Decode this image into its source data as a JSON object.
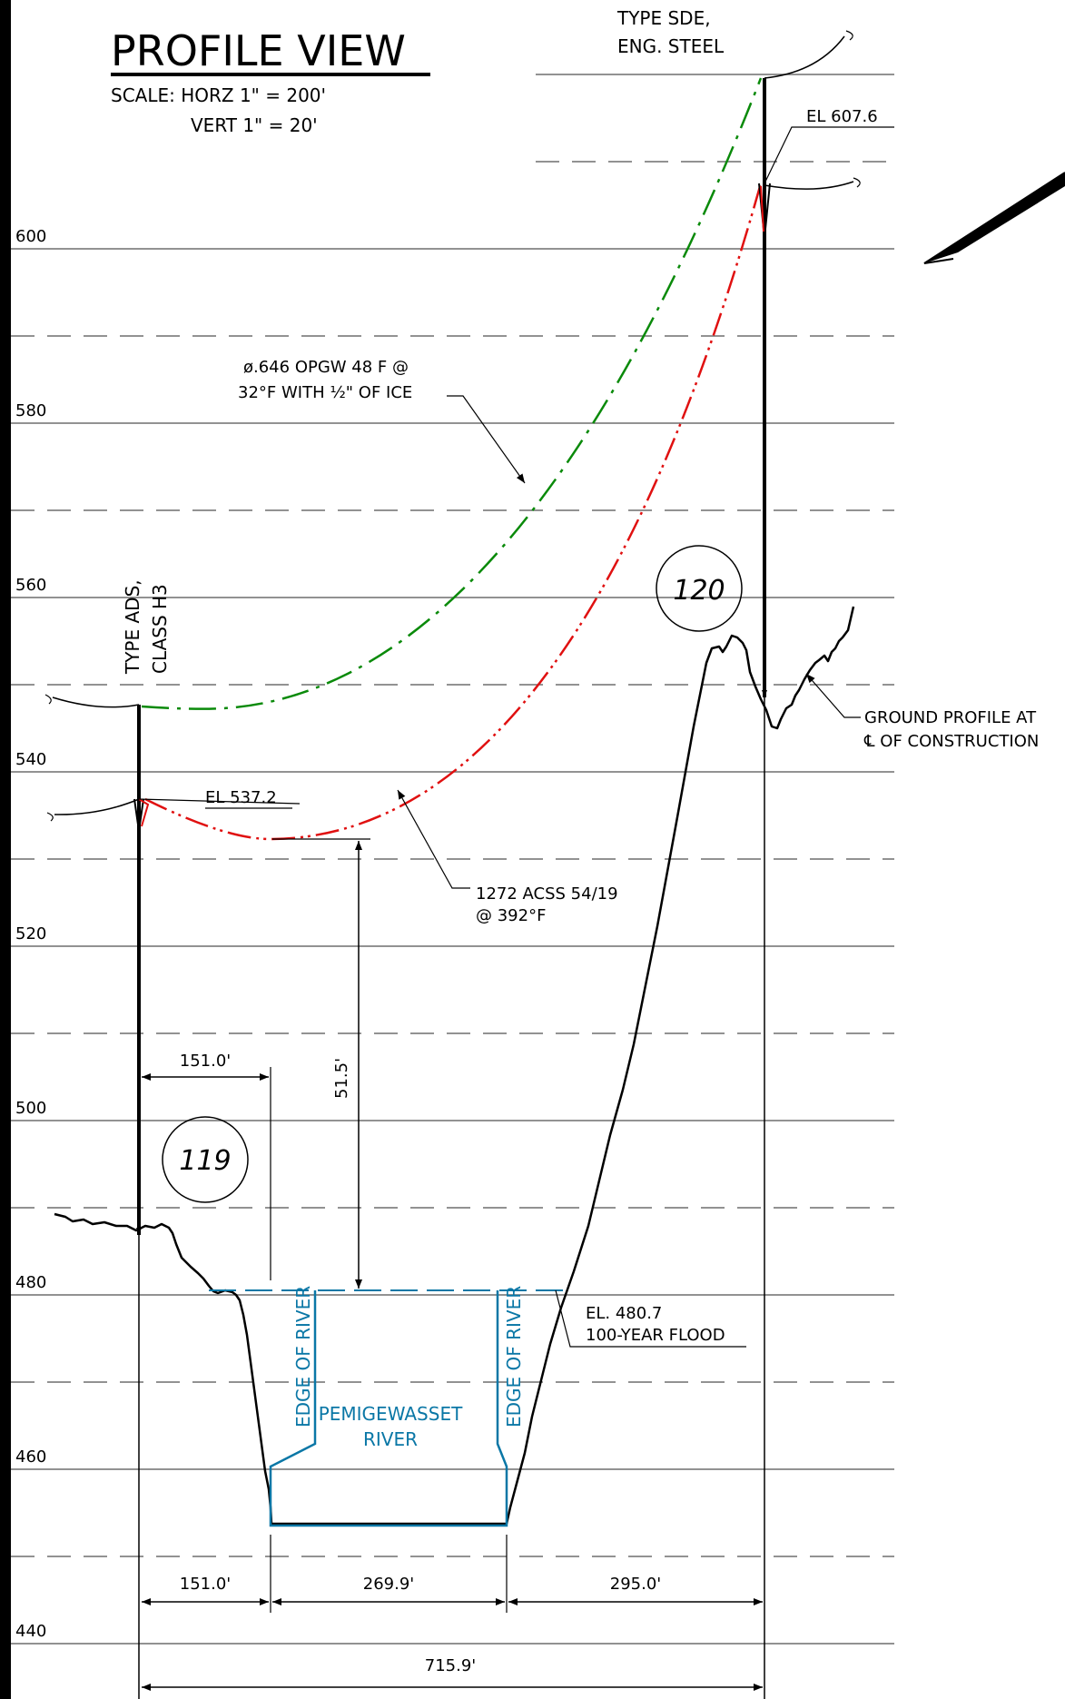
{
  "title": "PROFILE VIEW",
  "scale": {
    "horizontal": "SCALE: HORZ 1\" = 200'",
    "vertical": "VERT 1\" = 20'"
  },
  "elevation_labels": [
    "600",
    "580",
    "560",
    "540",
    "520",
    "500",
    "480",
    "460",
    "440"
  ],
  "structures": {
    "left": {
      "number": "119",
      "type_line1": "TYPE ADS,",
      "type_line2": "CLASS H3",
      "attachment_label": "EL 537.2"
    },
    "right": {
      "number": "120",
      "type_line1": "TYPE SDE,",
      "type_line2": "ENG. STEEL",
      "attachment_label": "EL 607.6"
    }
  },
  "conductors": {
    "opgw": {
      "line1": "ø.646 OPGW 48 F @",
      "line2": "32°F WITH ½\" OF ICE",
      "color": "#0a8a0a"
    },
    "acss": {
      "line1": "1272 ACSS 54/19",
      "line2": "@ 392°F",
      "color": "#e01010"
    }
  },
  "ground_label": {
    "line1": "GROUND PROFILE AT",
    "line2": "℄ OF CONSTRUCTION"
  },
  "flood_label": {
    "line1": "EL. 480.7",
    "line2": "100-YEAR FLOOD"
  },
  "river": {
    "name_line1": "PEMIGEWASSET",
    "name_line2": "RIVER",
    "edge_label": "EDGE OF RIVER",
    "color": "#0a77a6"
  },
  "dimensions": {
    "upper_left": "151.0'",
    "clearance": "51.5'",
    "lower_left": "151.0'",
    "river_width": "269.9'",
    "right": "295.0'",
    "total_span": "715.9'"
  }
}
